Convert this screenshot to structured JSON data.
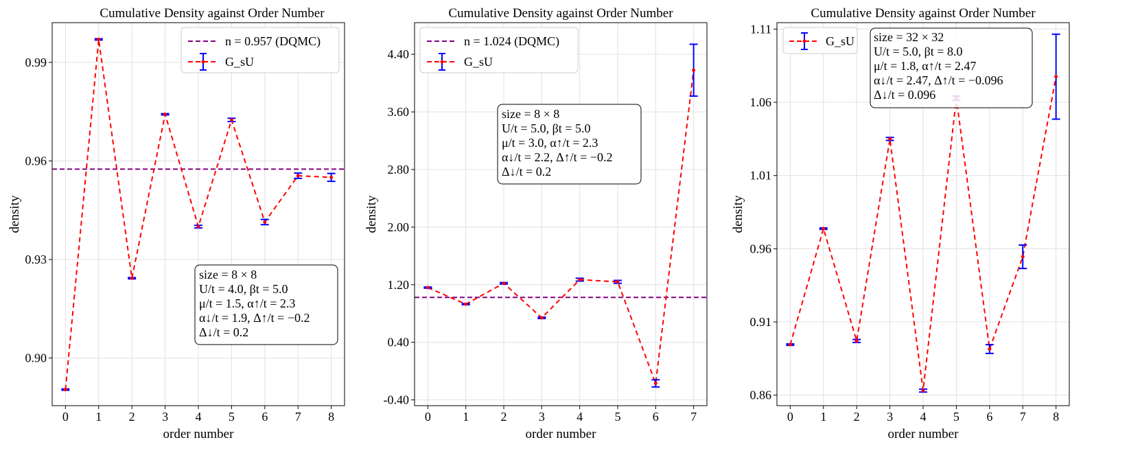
{
  "chart_data": [
    {
      "type": "line",
      "title": "Cumulative Density against Order Number",
      "xlabel": "order number",
      "ylabel": "density",
      "xlim": [
        -0.4,
        8.4
      ],
      "ylim": [
        0.8855,
        1.0021
      ],
      "yticks": [
        0.9,
        0.93,
        0.96,
        0.99
      ],
      "ytick_labels": [
        "0.90",
        "0.93",
        "0.96",
        "0.99"
      ],
      "xticks": [
        0,
        1,
        2,
        3,
        4,
        5,
        6,
        7,
        8
      ],
      "xtick_labels": [
        "0",
        "1",
        "2",
        "3",
        "4",
        "5",
        "6",
        "7",
        "8"
      ],
      "reference": {
        "value": 0.9575,
        "label": "n = 0.957 (DQMC)",
        "color": "#800080"
      },
      "series": [
        {
          "name": "G_sU",
          "x": [
            0,
            1,
            2,
            3,
            4,
            5,
            6,
            7,
            8
          ],
          "values": [
            0.8904,
            0.997,
            0.9243,
            0.9742,
            0.94,
            0.9725,
            0.9414,
            0.9555,
            0.955
          ],
          "errors": [
            0.0002,
            0.0002,
            0.0002,
            0.0002,
            0.0004,
            0.0005,
            0.0008,
            0.0008,
            0.0012
          ],
          "line_color": "#ff0000",
          "errorbar_color": "#0000ff"
        }
      ],
      "legend": {
        "position": "top-right",
        "entries": [
          "n = 0.957 (DQMC)",
          "G_sU"
        ]
      },
      "info_box": {
        "position": "lower-right",
        "lines": [
          "size = 8 × 8",
          "U/t = 4.0,  βt = 5.0",
          "μ/t = 1.5,  α↑/t = 2.3",
          "α↓/t = 1.9,  Δ↑/t = −0.2",
          "Δ↓/t = 0.2"
        ]
      }
    },
    {
      "type": "line",
      "title": "Cumulative Density against Order Number",
      "xlabel": "order number",
      "ylabel": "density",
      "xlim": [
        -0.35,
        7.35
      ],
      "ylim": [
        -0.48,
        4.84
      ],
      "yticks": [
        -0.4,
        0.4,
        1.2,
        2.0,
        2.8,
        3.6,
        4.4
      ],
      "ytick_labels": [
        "-0.40",
        "0.40",
        "1.20",
        "2.00",
        "2.80",
        "3.60",
        "4.40"
      ],
      "xticks": [
        0,
        1,
        2,
        3,
        4,
        5,
        6,
        7
      ],
      "xtick_labels": [
        "0",
        "1",
        "2",
        "3",
        "4",
        "5",
        "6",
        "7"
      ],
      "reference": {
        "value": 1.024,
        "label": "n = 1.024 (DQMC)",
        "color": "#800080"
      },
      "series": [
        {
          "name": "G_sU",
          "x": [
            0,
            1,
            2,
            3,
            4,
            5,
            6,
            7
          ],
          "values": [
            1.16,
            0.93,
            1.22,
            0.74,
            1.27,
            1.24,
            -0.17,
            4.18
          ],
          "errors": [
            0.008,
            0.008,
            0.01,
            0.01,
            0.02,
            0.02,
            0.05,
            0.36
          ],
          "line_color": "#ff0000",
          "errorbar_color": "#0000ff"
        }
      ],
      "legend": {
        "position": "top-left",
        "entries": [
          "n = 1.024 (DQMC)",
          "G_sU"
        ]
      },
      "info_box": {
        "position": "center",
        "lines": [
          "size = 8 × 8",
          "U/t = 5.0,  βt = 5.0",
          "μ/t = 3.0,  α↑/t = 2.3",
          "α↓/t = 2.2,  Δ↑/t = −0.2",
          "Δ↓/t = 0.2"
        ]
      }
    },
    {
      "type": "line",
      "title": "Cumulative Density against Order Number",
      "xlabel": "order number",
      "ylabel": "density",
      "xlim": [
        -0.4,
        8.4
      ],
      "ylim": [
        0.8528,
        1.1144
      ],
      "yticks": [
        0.86,
        0.91,
        0.96,
        1.01,
        1.06,
        1.11
      ],
      "ytick_labels": [
        "0.86",
        "0.91",
        "0.96",
        "1.01",
        "1.06",
        "1.11"
      ],
      "xticks": [
        0,
        1,
        2,
        3,
        4,
        5,
        6,
        7,
        8
      ],
      "xtick_labels": [
        "0",
        "1",
        "2",
        "3",
        "4",
        "5",
        "6",
        "7",
        "8"
      ],
      "reference": null,
      "series": [
        {
          "name": "G_sU",
          "x": [
            0,
            1,
            2,
            3,
            4,
            5,
            6,
            7,
            8
          ],
          "values": [
            0.8945,
            0.9737,
            0.897,
            1.035,
            0.8631,
            1.0628,
            0.8915,
            0.9545,
            1.0775
          ],
          "errors": [
            0.0005,
            0.0005,
            0.001,
            0.001,
            0.001,
            0.0015,
            0.003,
            0.008,
            0.029
          ],
          "line_color": "#ff0000",
          "errorbar_color": "#0000ff"
        }
      ],
      "legend": {
        "position": "top-left",
        "entries": [
          "G_sU"
        ]
      },
      "info_box": {
        "position": "top-center",
        "lines": [
          "size = 32 × 32",
          "U/t = 5.0,  βt = 8.0",
          "μ/t = 1.8,  α↑/t = 2.47",
          "α↓/t = 2.47,  Δ↑/t = −0.096",
          "Δ↓/t = 0.096"
        ]
      }
    }
  ]
}
